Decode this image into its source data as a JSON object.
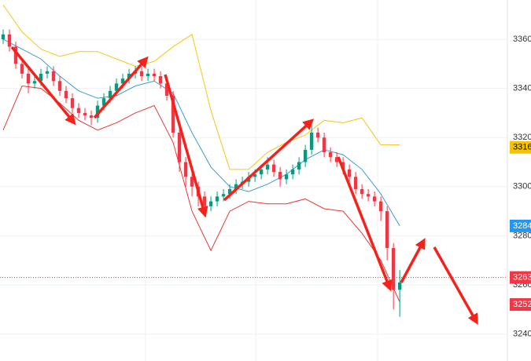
{
  "chart_data": {
    "type": "candlestick",
    "ylim": [
      3229,
      3376
    ],
    "xlim": [
      -0.5,
      80.1
    ],
    "yticks": [
      3240,
      3260,
      3280,
      3300,
      3320,
      3340,
      3360
    ],
    "grid": true,
    "up_color": "#089981",
    "down_color": "#f23645",
    "x": [
      0,
      1,
      2,
      3,
      4,
      5,
      6,
      7,
      8,
      9,
      10,
      11,
      12,
      13,
      14,
      15,
      16,
      17,
      18,
      19,
      20,
      21,
      22,
      23,
      24,
      25,
      26,
      27,
      28,
      29,
      30,
      31,
      32,
      33,
      34,
      35,
      36,
      37,
      38,
      39,
      40,
      41,
      42,
      43,
      44,
      45,
      46,
      47,
      48,
      49,
      50,
      51,
      52,
      53,
      54,
      55,
      56,
      57,
      58,
      59,
      60,
      61,
      62,
      63
    ],
    "open": [
      3360,
      3362,
      3357,
      3350,
      3346,
      3342,
      3343,
      3346,
      3347,
      3343,
      3339,
      3336,
      3332,
      3330,
      3329,
      3328,
      3333,
      3336,
      3339,
      3342,
      3344,
      3346,
      3347,
      3345,
      3346,
      3345,
      3342,
      3337,
      3322,
      3310,
      3304,
      3300,
      3296,
      3292,
      3294,
      3296,
      3297,
      3299,
      3301,
      3302,
      3304,
      3305,
      3307,
      3309,
      3306,
      3303,
      3305,
      3307,
      3310,
      3315,
      3322,
      3320,
      3314,
      3312,
      3310,
      3307,
      3304,
      3299,
      3297,
      3296,
      3294,
      3290,
      3275,
      3258
    ],
    "high": [
      3364,
      3364,
      3359,
      3352,
      3348,
      3345,
      3348,
      3349,
      3349,
      3345,
      3341,
      3338,
      3334,
      3332,
      3331,
      3335,
      3338,
      3341,
      3344,
      3346,
      3348,
      3349,
      3349,
      3348,
      3348,
      3347,
      3344,
      3339,
      3324,
      3312,
      3306,
      3302,
      3298,
      3296,
      3298,
      3299,
      3301,
      3303,
      3304,
      3306,
      3307,
      3309,
      3312,
      3311,
      3308,
      3307,
      3309,
      3312,
      3317,
      3325,
      3324,
      3322,
      3316,
      3314,
      3312,
      3309,
      3306,
      3301,
      3299,
      3298,
      3296,
      3292,
      3277,
      3266
    ],
    "low": [
      3358,
      3355,
      3348,
      3344,
      3338,
      3340,
      3341,
      3344,
      3341,
      3337,
      3334,
      3330,
      3328,
      3327,
      3325,
      3326,
      3331,
      3334,
      3337,
      3340,
      3342,
      3344,
      3343,
      3343,
      3343,
      3340,
      3335,
      3320,
      3306,
      3300,
      3296,
      3292,
      3288,
      3290,
      3292,
      3294,
      3295,
      3297,
      3299,
      3300,
      3302,
      3303,
      3305,
      3304,
      3300,
      3301,
      3303,
      3305,
      3308,
      3313,
      3318,
      3312,
      3310,
      3308,
      3305,
      3302,
      3297,
      3295,
      3294,
      3292,
      3286,
      3270,
      3250,
      3247
    ],
    "close": [
      3362,
      3357,
      3350,
      3346,
      3342,
      3343,
      3346,
      3347,
      3343,
      3339,
      3336,
      3332,
      3330,
      3329,
      3328,
      3333,
      3336,
      3339,
      3342,
      3344,
      3346,
      3347,
      3345,
      3346,
      3345,
      3342,
      3337,
      3322,
      3310,
      3304,
      3300,
      3296,
      3292,
      3294,
      3296,
      3297,
      3299,
      3301,
      3302,
      3304,
      3305,
      3307,
      3309,
      3306,
      3303,
      3305,
      3307,
      3310,
      3315,
      3322,
      3320,
      3314,
      3312,
      3310,
      3307,
      3304,
      3299,
      3297,
      3296,
      3294,
      3290,
      3275,
      3258,
      3261
    ],
    "bands": {
      "x": [
        0,
        3,
        6,
        9,
        12,
        15,
        18,
        21,
        24,
        27,
        30,
        33,
        36,
        39,
        42,
        45,
        48,
        51,
        54,
        57,
        60,
        63
      ],
      "series": [
        {
          "color": "#f5c518",
          "values": [
            3374,
            3363,
            3356,
            3353,
            3355,
            3355,
            3352,
            3349,
            3351,
            3357,
            3362,
            3331,
            3307,
            3307,
            3314,
            3318,
            3321,
            3327,
            3326,
            3328,
            3317,
            3317
          ]
        },
        {
          "color": "#3c9bd6",
          "values": [
            3360,
            3356,
            3352,
            3345,
            3339,
            3336,
            3337,
            3341,
            3343,
            3338,
            3322,
            3308,
            3300,
            3298,
            3301,
            3305,
            3311,
            3315,
            3313,
            3307,
            3297,
            3284
          ]
        },
        {
          "color": "#e53935",
          "values": [
            3323,
            3341,
            3340,
            3334,
            3327,
            3323,
            3326,
            3330,
            3333,
            3318,
            3290,
            3274,
            3290,
            3294,
            3293,
            3293,
            3295,
            3291,
            3290,
            3281,
            3270,
            3253
          ]
        }
      ]
    },
    "price_markers": [
      {
        "value": 3316,
        "color": "#f5c400",
        "text_color": "#000000"
      },
      {
        "value": 3284,
        "color": "#2196f3",
        "text_color": "#ffffff"
      },
      {
        "value": 3263,
        "color": "#f23645",
        "text_color": "#ffffff",
        "dotted": true
      },
      {
        "value": 3252,
        "color": "#f23645",
        "text_color": "#ffffff"
      }
    ]
  }
}
